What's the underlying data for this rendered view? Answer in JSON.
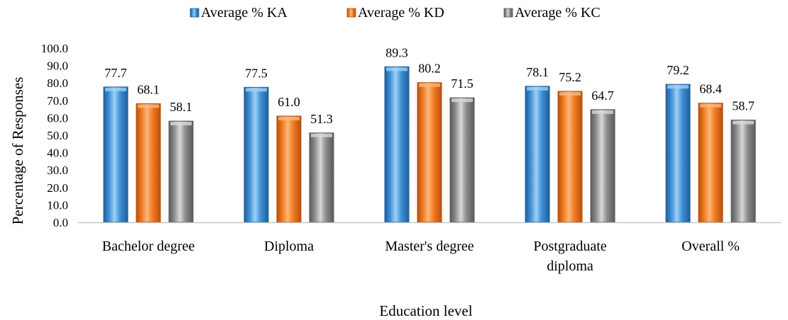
{
  "chart_data": {
    "type": "bar",
    "title": "",
    "xlabel": "Education level",
    "ylabel": "Percentage of Responses",
    "ylim": [
      0,
      100
    ],
    "yticks": [
      "0.0",
      "10.0",
      "20.0",
      "30.0",
      "40.0",
      "50.0",
      "60.0",
      "70.0",
      "80.0",
      "90.0",
      "100.0"
    ],
    "categories": [
      [
        "Bachelor degree"
      ],
      [
        "Diploma"
      ],
      [
        "Master's degree"
      ],
      [
        "Postgraduate",
        "diploma"
      ],
      [
        "Overall %"
      ]
    ],
    "series": [
      {
        "name": "Average % KA",
        "color": "#3f8fd6",
        "light": "#9fd0f6",
        "dark": "#1f5f9a",
        "values": [
          77.7,
          77.5,
          89.3,
          78.1,
          79.2
        ],
        "labels": [
          "77.7",
          "77.5",
          "89.3",
          "78.1",
          "79.2"
        ]
      },
      {
        "name": "Average % KD",
        "color": "#f07a22",
        "light": "#fbb77a",
        "dark": "#b8500d",
        "values": [
          68.1,
          61.0,
          80.2,
          75.2,
          68.4
        ],
        "labels": [
          "68.1",
          "61.0",
          "80.2",
          "75.2",
          "68.4"
        ]
      },
      {
        "name": "Average % KC",
        "color": "#8c8c8c",
        "light": "#d8d8d8",
        "dark": "#5a5a5a",
        "values": [
          58.1,
          51.3,
          71.5,
          64.7,
          58.7
        ],
        "labels": [
          "58.1",
          "51.3",
          "71.5",
          "64.7",
          "58.7"
        ]
      }
    ],
    "legend": "top",
    "grid": false
  }
}
